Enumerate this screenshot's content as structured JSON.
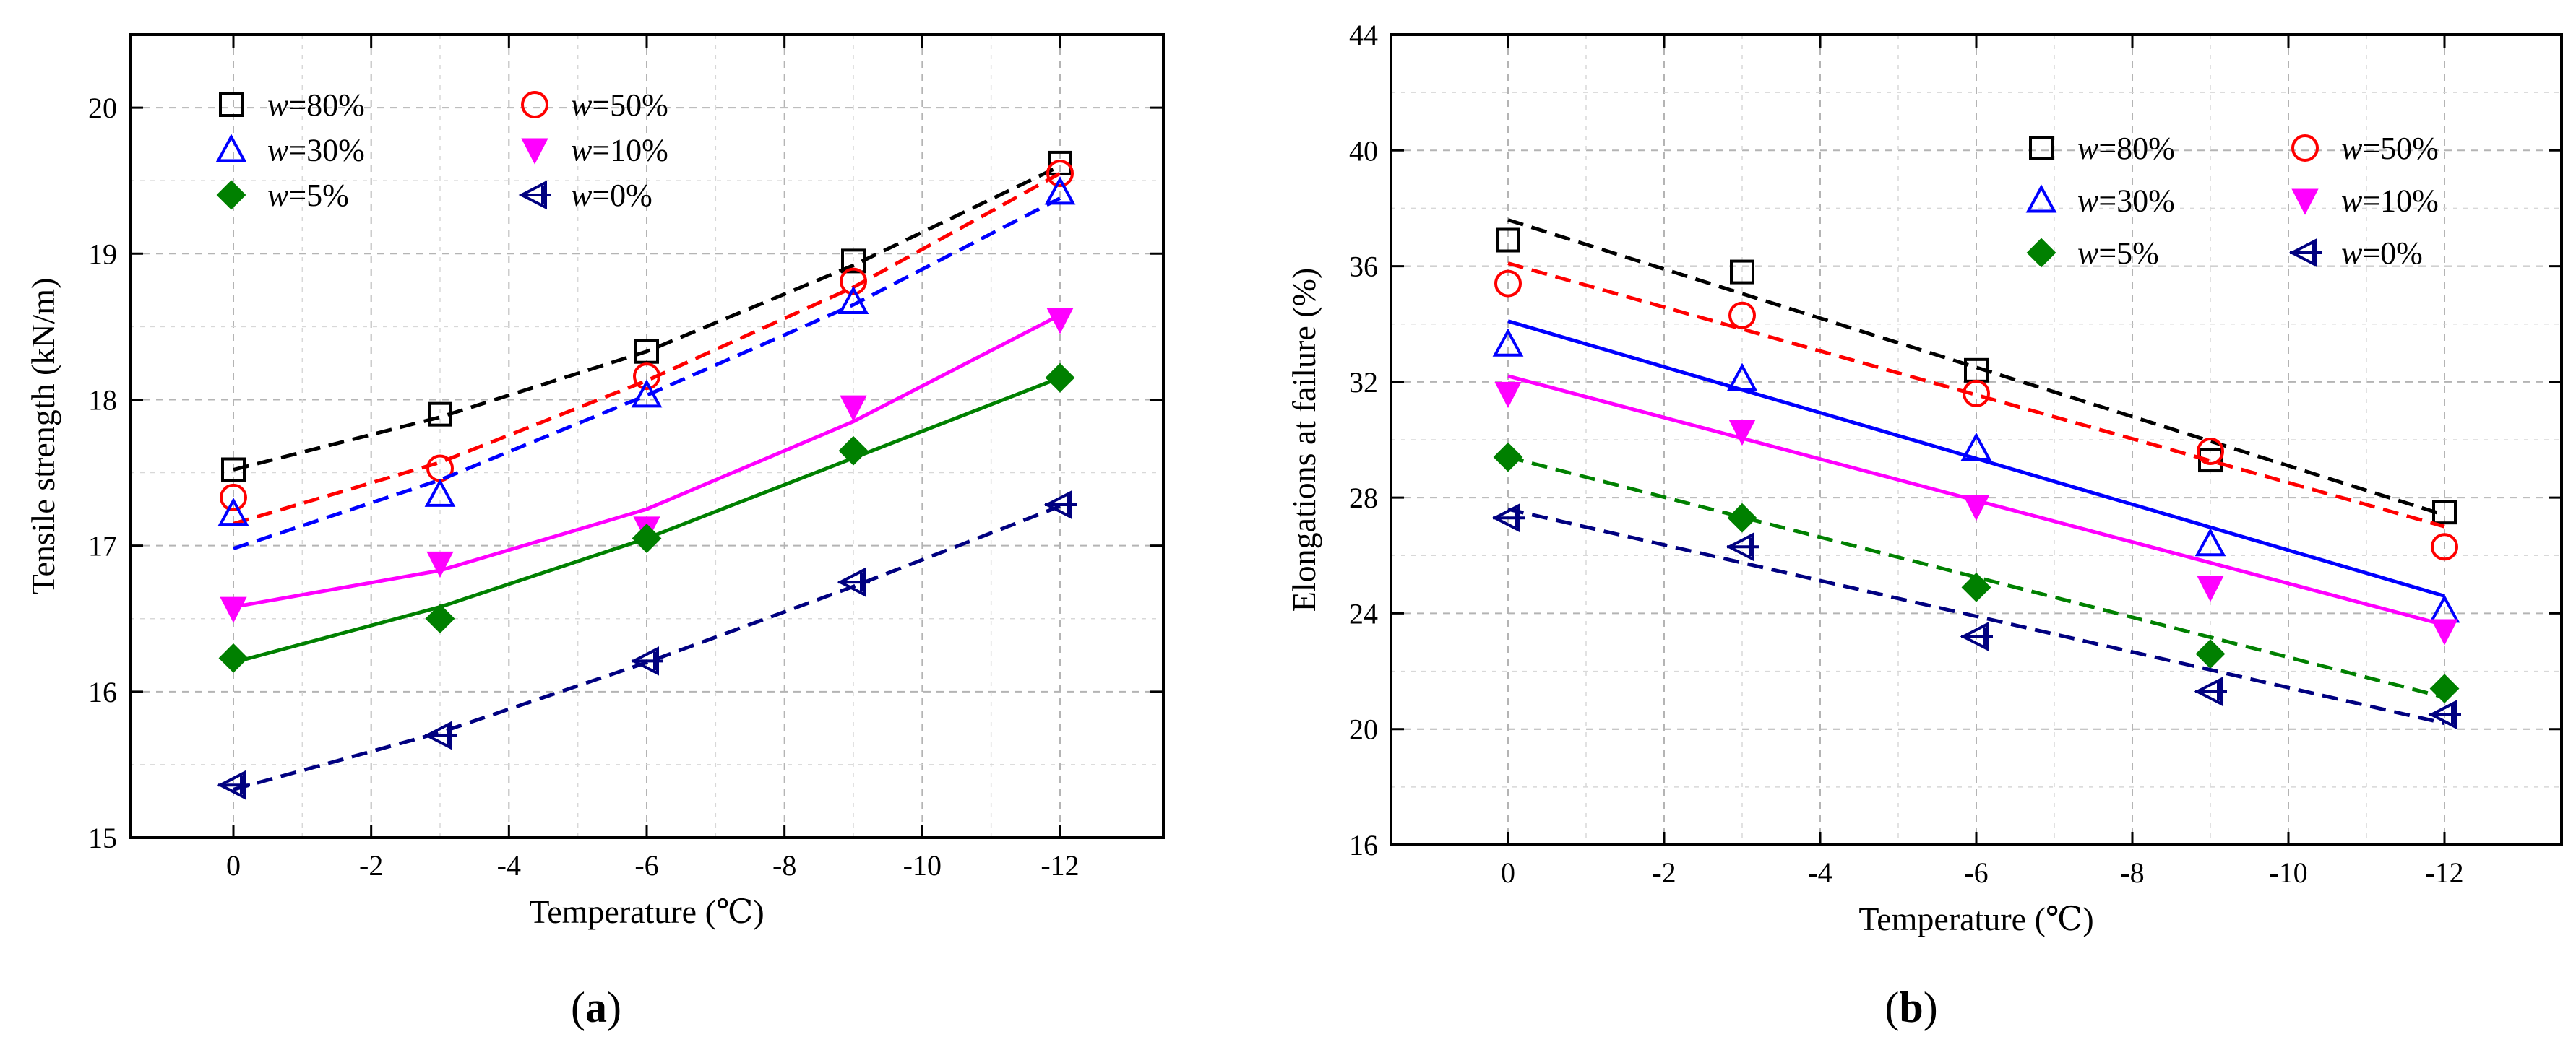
{
  "chart_data": [
    {
      "type": "scatter",
      "panel": "a",
      "xlabel": "Temperature (℃)",
      "ylabel": "Tensile strength (kN/m)",
      "xlim": [
        1.5,
        -13.5
      ],
      "ylim": [
        15,
        20.5
      ],
      "x_ticks": [
        0,
        -2,
        -4,
        -6,
        -8,
        -10,
        -12
      ],
      "x_tick_labels": [
        "0",
        "-2",
        "-4",
        "-6",
        "-8",
        "-10",
        "-12"
      ],
      "y_ticks": [
        15,
        16,
        17,
        18,
        19,
        20
      ],
      "y_tick_labels": [
        "15",
        "16",
        "17",
        "18",
        "19",
        "20"
      ],
      "grid": true,
      "legend_position": "top-left",
      "legend_columns": 2,
      "series": [
        {
          "name": "w=80%",
          "marker": "square-open",
          "color": "#000000",
          "fit": "dashed",
          "x": [
            0,
            -3,
            -6,
            -9,
            -12
          ],
          "y": [
            17.52,
            17.9,
            18.33,
            18.95,
            19.62
          ],
          "fit_y": [
            17.52,
            17.88,
            18.33,
            18.92,
            19.6
          ]
        },
        {
          "name": "w=50%",
          "marker": "circle-open",
          "color": "#ff0000",
          "fit": "dashed",
          "x": [
            0,
            -3,
            -6,
            -9,
            -12
          ],
          "y": [
            17.33,
            17.53,
            18.16,
            18.81,
            19.55
          ],
          "fit_y": [
            17.15,
            17.57,
            18.13,
            18.77,
            19.55
          ]
        },
        {
          "name": "w=30%",
          "marker": "triangle-open",
          "color": "#0000ff",
          "fit": "dashed",
          "x": [
            0,
            -3,
            -6,
            -9,
            -12
          ],
          "y": [
            17.22,
            17.35,
            18.03,
            18.67,
            19.42
          ],
          "fit_y": [
            16.98,
            17.45,
            18.03,
            18.65,
            19.38
          ]
        },
        {
          "name": "w=10%",
          "marker": "triangle-down-filled",
          "color": "#ff00ff",
          "fit": "solid",
          "x": [
            0,
            -3,
            -6,
            -9,
            -12
          ],
          "y": [
            16.57,
            16.88,
            17.12,
            17.95,
            18.55
          ],
          "fit_y": [
            16.58,
            16.83,
            17.25,
            17.85,
            18.58
          ]
        },
        {
          "name": "w=5%",
          "marker": "diamond-filled",
          "color": "#008000",
          "fit": "solid",
          "x": [
            0,
            -3,
            -6,
            -9,
            -12
          ],
          "y": [
            16.23,
            16.5,
            17.05,
            17.65,
            18.15
          ],
          "fit_y": [
            16.2,
            16.58,
            17.05,
            17.6,
            18.15
          ]
        },
        {
          "name": "w=0%",
          "marker": "left-triangle-plus",
          "color": "#000080",
          "fit": "dashed",
          "x": [
            0,
            -3,
            -6,
            -9,
            -12
          ],
          "y": [
            15.36,
            15.7,
            16.21,
            16.75,
            17.28
          ],
          "fit_y": [
            15.33,
            15.72,
            16.2,
            16.72,
            17.27
          ]
        }
      ],
      "panel_label": {
        "open": "(",
        "letter": "a",
        "close": ")"
      }
    },
    {
      "type": "scatter",
      "panel": "b",
      "xlabel": "Temperature (℃)",
      "ylabel": "Elongations at failure (%)",
      "xlim": [
        1.5,
        -13.5
      ],
      "ylim": [
        16,
        44
      ],
      "x_ticks": [
        0,
        -2,
        -4,
        -6,
        -8,
        -10,
        -12
      ],
      "x_tick_labels": [
        "0",
        "-2",
        "-4",
        "-6",
        "-8",
        "-10",
        "-12"
      ],
      "y_ticks": [
        16,
        20,
        24,
        28,
        32,
        36,
        40,
        44
      ],
      "y_tick_labels": [
        "16",
        "20",
        "24",
        "28",
        "32",
        "36",
        "40",
        "44"
      ],
      "grid": true,
      "legend_position": "top-right",
      "legend_columns": 2,
      "series": [
        {
          "name": "w=80%",
          "marker": "square-open",
          "color": "#000000",
          "fit": "dashed",
          "x": [
            0,
            -3,
            -6,
            -9,
            -12
          ],
          "y": [
            36.9,
            35.8,
            32.4,
            29.3,
            27.5
          ],
          "fit_y": [
            37.6,
            27.4
          ]
        },
        {
          "name": "w=50%",
          "marker": "circle-open",
          "color": "#ff0000",
          "fit": "dashed",
          "x": [
            0,
            -3,
            -6,
            -9,
            -12
          ],
          "y": [
            35.4,
            34.3,
            31.6,
            29.6,
            26.3
          ],
          "fit_y": [
            36.1,
            27.0
          ]
        },
        {
          "name": "w=30%",
          "marker": "triangle-open",
          "color": "#0000ff",
          "fit": "solid",
          "x": [
            0,
            -3,
            -6,
            -9,
            -12
          ],
          "y": [
            33.3,
            32.1,
            29.7,
            26.4,
            24.1
          ],
          "fit_y": [
            34.1,
            24.6
          ]
        },
        {
          "name": "w=10%",
          "marker": "triangle-down-filled",
          "color": "#ff00ff",
          "fit": "solid",
          "x": [
            0,
            -3,
            -6,
            -9,
            -12
          ],
          "y": [
            31.6,
            30.3,
            27.7,
            24.9,
            23.4
          ],
          "fit_y": [
            32.2,
            23.6
          ]
        },
        {
          "name": "w=5%",
          "marker": "diamond-filled",
          "color": "#008000",
          "fit": "dashed",
          "x": [
            0,
            -3,
            -6,
            -9,
            -12
          ],
          "y": [
            29.4,
            27.3,
            24.9,
            22.6,
            21.4
          ],
          "fit_y": [
            29.4,
            21.1
          ]
        },
        {
          "name": "w=0%",
          "marker": "left-triangle-plus",
          "color": "#000080",
          "fit": "dashed",
          "x": [
            0,
            -3,
            -6,
            -9,
            -12
          ],
          "y": [
            27.3,
            26.3,
            23.2,
            21.3,
            20.5
          ],
          "fit_y": [
            27.6,
            20.2
          ]
        }
      ],
      "panel_label": {
        "open": "(",
        "letter": "b",
        "close": ")"
      }
    }
  ]
}
